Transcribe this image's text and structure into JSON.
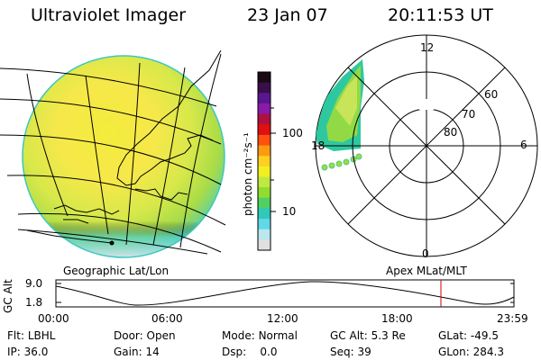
{
  "header": {
    "instrument": "Ultraviolet Imager",
    "date": "23 Jan 07",
    "time": "20:11:53 UT"
  },
  "colorbar": {
    "unit": "photon cm⁻²s⁻¹",
    "ticks": [
      "100",
      "10"
    ],
    "colors": [
      "#1a0a14",
      "#3a0e4a",
      "#5a1690",
      "#8a1aa8",
      "#b01040",
      "#e01010",
      "#ff5010",
      "#ff9a10",
      "#ffd020",
      "#f0f020",
      "#c0e840",
      "#90dc30",
      "#50d060",
      "#30c8b8",
      "#60d8e8",
      "#b8e8f0",
      "#e0e0e0"
    ]
  },
  "map_labels": {
    "left": "Geographic Lat/Lon",
    "right": "Apex MLat/MLT"
  },
  "polar": {
    "mlt_labels": {
      "top": "12",
      "right": "6",
      "bottom": "0",
      "left": "18"
    },
    "lat_labels": [
      "60",
      "70",
      "80"
    ]
  },
  "timeline": {
    "axis_label": "GC Alt",
    "ytick_top": "9.0",
    "ytick_bottom": "1.8",
    "xticks": [
      "00:00",
      "06:00",
      "12:00",
      "18:00",
      "23:59"
    ],
    "marker_color": "#cc0000"
  },
  "footer": {
    "filter_label": "Flt:",
    "filter_value": "LBHL",
    "ip_label": "IP:",
    "ip_value": "36.0",
    "door_label": "Door:",
    "door_value": "Open",
    "gain_label": "Gain:",
    "gain_value": "14",
    "mode_label": "Mode:",
    "mode_value": "Normal",
    "dsp_label": "Dsp:",
    "dsp_value": "0.0",
    "gcalt_label": "GC Alt:",
    "gcalt_value": "5.3 Re",
    "seq_label": "Seq:",
    "seq_value": "39",
    "glat_label": "GLat:",
    "glat_value": "-49.5",
    "glon_label": "GLon:",
    "glon_value": "284.3"
  }
}
